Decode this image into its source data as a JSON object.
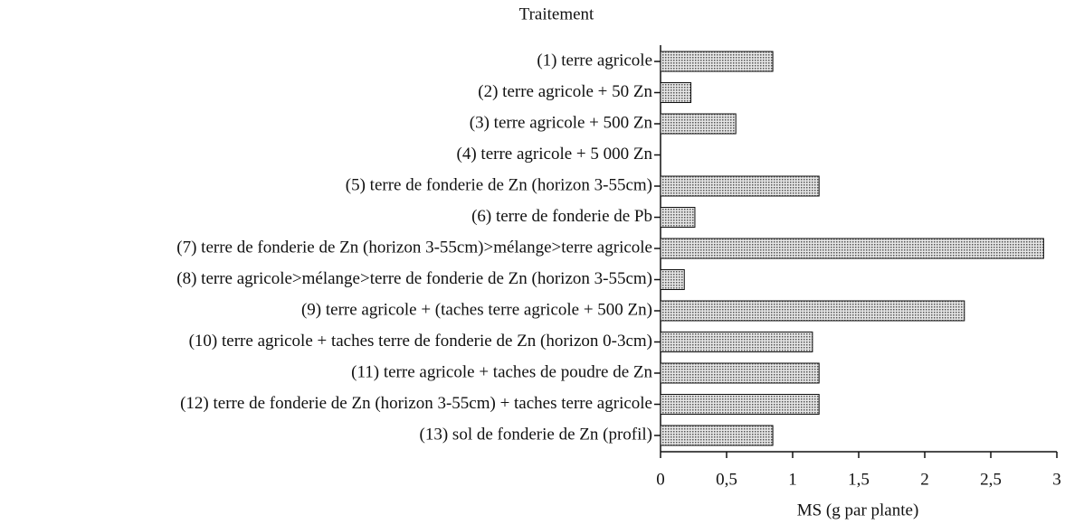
{
  "chart_data": {
    "type": "barh",
    "title": "Traitement",
    "x_label": "MS (g par plante)",
    "categories": [
      "(1) terre agricole",
      "(2) terre agricole + 50 Zn",
      "(3) terre agricole + 500 Zn",
      "(4) terre agricole + 5 000 Zn",
      "(5) terre de fonderie de Zn (horizon 3-55cm)",
      "(6) terre de fonderie de Pb",
      "(7) terre de fonderie de Zn (horizon 3-55cm)>mélange>terre agricole",
      "(8) terre agricole>mélange>terre de fonderie de Zn (horizon 3-55cm)",
      "(9) terre agricole + (taches terre agricole + 500 Zn)",
      "(10) terre agricole + taches terre de fonderie de Zn (horizon 0-3cm)",
      "(11) terre agricole + taches de poudre de Zn",
      "(12) terre de fonderie de Zn (horizon 3-55cm) + taches terre agricole",
      "(13) sol de fonderie de Zn (profil)"
    ],
    "values": [
      0.85,
      0.23,
      0.57,
      0,
      1.2,
      0.26,
      2.9,
      0.18,
      2.3,
      1.15,
      1.2,
      1.2,
      0.85
    ],
    "color": "#555555",
    "xlim": [
      0,
      3
    ],
    "xticks": [
      0,
      {
        "value": 0.5,
        "label": "0,5"
      },
      1,
      {
        "value": 1.5,
        "label": "1,5"
      },
      2,
      {
        "value": 2.5,
        "label": "2,5"
      },
      3
    ]
  }
}
